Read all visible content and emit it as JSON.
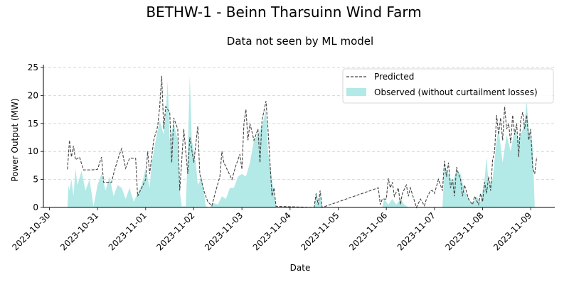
{
  "chart_data": {
    "type": "area",
    "title": "BETHW-1 - Beinn Tharsuinn Wind Farm",
    "subtitle": "Data not seen by ML model",
    "xlabel": "Date",
    "ylabel": "Power Output (MW)",
    "xlim": [
      "2023-10-29 21:00",
      "2023-11-09 12:00"
    ],
    "ylim": [
      0,
      25.5
    ],
    "yticks": [
      0,
      5,
      10,
      15,
      20,
      25
    ],
    "xticks": [
      "2023-10-30",
      "2023-10-31",
      "2023-11-01",
      "2023-11-02",
      "2023-11-03",
      "2023-11-04",
      "2023-11-05",
      "2023-11-06",
      "2023-11-07",
      "2023-11-08",
      "2023-11-09"
    ],
    "grid": "horizontal dashed",
    "legend_position": "top-right",
    "colors": {
      "predicted": "#444444",
      "observed": "#b3e9e6"
    },
    "series": [
      {
        "name": "Predicted",
        "style": "dashed-line",
        "points": [
          [
            "2023-10-30 09:00",
            6.8
          ],
          [
            "2023-10-30 10:00",
            12
          ],
          [
            "2023-10-30 11:00",
            9
          ],
          [
            "2023-10-30 12:00",
            11
          ],
          [
            "2023-10-30 13:00",
            8.5
          ],
          [
            "2023-10-30 15:00",
            9
          ],
          [
            "2023-10-30 17:00",
            6.7
          ],
          [
            "2023-10-30 21:00",
            6.7
          ],
          [
            "2023-10-31 00:00",
            6.8
          ],
          [
            "2023-10-31 02:00",
            9
          ],
          [
            "2023-10-31 03:00",
            4.5
          ],
          [
            "2023-10-31 07:00",
            4.5
          ],
          [
            "2023-10-31 08:00",
            6
          ],
          [
            "2023-10-31 10:00",
            8.5
          ],
          [
            "2023-10-31 12:00",
            10.5
          ],
          [
            "2023-10-31 14:00",
            7
          ],
          [
            "2023-10-31 16:00",
            8.8
          ],
          [
            "2023-10-31 19:00",
            8.8
          ],
          [
            "2023-10-31 20:00",
            2
          ],
          [
            "2023-10-31 22:00",
            3.5
          ],
          [
            "2023-11-01 00:00",
            5
          ],
          [
            "2023-11-01 01:00",
            10
          ],
          [
            "2023-11-01 02:00",
            6
          ],
          [
            "2023-11-01 04:00",
            12
          ],
          [
            "2023-11-01 06:00",
            14.5
          ],
          [
            "2023-11-01 07:00",
            18
          ],
          [
            "2023-11-01 08:00",
            23.5
          ],
          [
            "2023-11-01 09:00",
            14
          ],
          [
            "2023-11-01 10:00",
            18
          ],
          [
            "2023-11-01 12:00",
            17
          ],
          [
            "2023-11-01 13:00",
            8
          ],
          [
            "2023-11-01 14:00",
            16
          ],
          [
            "2023-11-01 16:00",
            14
          ],
          [
            "2023-11-01 17:00",
            3
          ],
          [
            "2023-11-01 19:00",
            14
          ],
          [
            "2023-11-01 21:00",
            6
          ],
          [
            "2023-11-01 22:00",
            12.5
          ],
          [
            "2023-11-02 00:00",
            8
          ],
          [
            "2023-11-02 02:00",
            14.5
          ],
          [
            "2023-11-02 03:00",
            6
          ],
          [
            "2023-11-02 05:00",
            3
          ],
          [
            "2023-11-02 07:00",
            1
          ],
          [
            "2023-11-02 09:00",
            0.3
          ],
          [
            "2023-11-02 11:00",
            3
          ],
          [
            "2023-11-02 13:00",
            5.5
          ],
          [
            "2023-11-02 14:00",
            10
          ],
          [
            "2023-11-02 15:00",
            8
          ],
          [
            "2023-11-02 17:00",
            6.5
          ],
          [
            "2023-11-02 19:00",
            5
          ],
          [
            "2023-11-02 21:00",
            7.5
          ],
          [
            "2023-11-02 23:00",
            9.5
          ],
          [
            "2023-11-03 00:00",
            6.8
          ],
          [
            "2023-11-03 01:00",
            15
          ],
          [
            "2023-11-03 02:00",
            17.5
          ],
          [
            "2023-11-03 03:00",
            12
          ],
          [
            "2023-11-03 04:00",
            15
          ],
          [
            "2023-11-03 06:00",
            12
          ],
          [
            "2023-11-03 08:00",
            14
          ],
          [
            "2023-11-03 09:00",
            8
          ],
          [
            "2023-11-03 10:00",
            15.5
          ],
          [
            "2023-11-03 12:00",
            19
          ],
          [
            "2023-11-03 13:00",
            14
          ],
          [
            "2023-11-03 15:00",
            2
          ],
          [
            "2023-11-03 16:00",
            3.5
          ],
          [
            "2023-11-03 17:00",
            0.2
          ],
          [
            "2023-11-04 12:00",
            0
          ],
          [
            "2023-11-04 13:00",
            2.5
          ],
          [
            "2023-11-04 14:00",
            0.5
          ],
          [
            "2023-11-04 15:00",
            3
          ],
          [
            "2023-11-04 16:00",
            0
          ],
          [
            "2023-11-05 20:00",
            3.5
          ],
          [
            "2023-11-05 21:00",
            0.5
          ],
          [
            "2023-11-05 22:00",
            1.5
          ],
          [
            "2023-11-06 00:00",
            1.5
          ],
          [
            "2023-11-06 01:00",
            5.2
          ],
          [
            "2023-11-06 02:00",
            3.5
          ],
          [
            "2023-11-06 03:00",
            4.5
          ],
          [
            "2023-11-06 04:00",
            2
          ],
          [
            "2023-11-06 06:00",
            3.5
          ],
          [
            "2023-11-06 07:00",
            0.5
          ],
          [
            "2023-11-06 08:00",
            2.5
          ],
          [
            "2023-11-06 10:00",
            4
          ],
          [
            "2023-11-06 11:00",
            2
          ],
          [
            "2023-11-06 12:00",
            3.5
          ],
          [
            "2023-11-06 15:00",
            0
          ],
          [
            "2023-11-06 17:00",
            1.5
          ],
          [
            "2023-11-06 19:00",
            0.3
          ],
          [
            "2023-11-06 20:00",
            1.5
          ],
          [
            "2023-11-06 22:00",
            3
          ],
          [
            "2023-11-06 23:00",
            3
          ],
          [
            "2023-11-07 00:00",
            2.5
          ],
          [
            "2023-11-07 02:00",
            5
          ],
          [
            "2023-11-07 04:00",
            3
          ],
          [
            "2023-11-07 05:00",
            8.3
          ],
          [
            "2023-11-07 06:00",
            5.5
          ],
          [
            "2023-11-07 07:00",
            8
          ],
          [
            "2023-11-07 08:00",
            3.5
          ],
          [
            "2023-11-07 09:00",
            5
          ],
          [
            "2023-11-07 10:00",
            2
          ],
          [
            "2023-11-07 11:00",
            7.2
          ],
          [
            "2023-11-07 12:00",
            6
          ],
          [
            "2023-11-07 13:00",
            5
          ],
          [
            "2023-11-07 14:00",
            2
          ],
          [
            "2023-11-07 15:00",
            4
          ],
          [
            "2023-11-07 17:00",
            1.5
          ],
          [
            "2023-11-07 19:00",
            0.5
          ],
          [
            "2023-11-07 20:00",
            2
          ],
          [
            "2023-11-07 22:00",
            0.5
          ],
          [
            "2023-11-07 23:00",
            2.5
          ],
          [
            "2023-11-08 00:00",
            1
          ],
          [
            "2023-11-08 01:00",
            4.5
          ],
          [
            "2023-11-08 02:00",
            2.5
          ],
          [
            "2023-11-08 03:00",
            5.5
          ],
          [
            "2023-11-08 04:00",
            3
          ],
          [
            "2023-11-08 05:00",
            8.5
          ],
          [
            "2023-11-08 06:00",
            10
          ],
          [
            "2023-11-08 07:00",
            16.5
          ],
          [
            "2023-11-08 08:00",
            13
          ],
          [
            "2023-11-08 09:00",
            16
          ],
          [
            "2023-11-08 10:00",
            12
          ],
          [
            "2023-11-08 11:00",
            18
          ],
          [
            "2023-11-08 12:00",
            14
          ],
          [
            "2023-11-08 13:00",
            15
          ],
          [
            "2023-11-08 14:00",
            11.5
          ],
          [
            "2023-11-08 15:00",
            16.5
          ],
          [
            "2023-11-08 16:00",
            13
          ],
          [
            "2023-11-08 17:00",
            15
          ],
          [
            "2023-11-08 18:00",
            9
          ],
          [
            "2023-11-08 19:00",
            15.5
          ],
          [
            "2023-11-08 20:00",
            17
          ],
          [
            "2023-11-08 21:00",
            14
          ],
          [
            "2023-11-08 22:00",
            16.5
          ],
          [
            "2023-11-08 23:00",
            12
          ],
          [
            "2023-11-09 00:00",
            14
          ],
          [
            "2023-11-09 01:00",
            7
          ],
          [
            "2023-11-09 02:00",
            6
          ],
          [
            "2023-11-09 03:00",
            9
          ]
        ]
      },
      {
        "name": "Observed (without curtailment losses)",
        "style": "filled-area",
        "points": [
          [
            "2023-10-30 09:00",
            0
          ],
          [
            "2023-10-30 09:30",
            4
          ],
          [
            "2023-10-30 10:00",
            3
          ],
          [
            "2023-10-30 11:00",
            5
          ],
          [
            "2023-10-30 12:00",
            2
          ],
          [
            "2023-10-30 13:00",
            7
          ],
          [
            "2023-10-30 14:00",
            4
          ],
          [
            "2023-10-30 16:00",
            6.5
          ],
          [
            "2023-10-30 18:00",
            3
          ],
          [
            "2023-10-30 20:00",
            5
          ],
          [
            "2023-10-30 22:00",
            0.2
          ],
          [
            "2023-10-31 00:00",
            4
          ],
          [
            "2023-10-31 02:00",
            6
          ],
          [
            "2023-10-31 04:00",
            3
          ],
          [
            "2023-10-31 06:00",
            5.5
          ],
          [
            "2023-10-31 08:00",
            2
          ],
          [
            "2023-10-31 10:00",
            4
          ],
          [
            "2023-10-31 12:00",
            3.5
          ],
          [
            "2023-10-31 14:00",
            1.5
          ],
          [
            "2023-10-31 16:00",
            3.5
          ],
          [
            "2023-10-31 18:00",
            1
          ],
          [
            "2023-10-31 20:00",
            2.5
          ],
          [
            "2023-10-31 22:00",
            4
          ],
          [
            "2023-11-01 00:00",
            7
          ],
          [
            "2023-11-01 02:00",
            3.5
          ],
          [
            "2023-11-01 03:00",
            8
          ],
          [
            "2023-11-01 05:00",
            12
          ],
          [
            "2023-11-01 07:00",
            15.5
          ],
          [
            "2023-11-01 09:00",
            13
          ],
          [
            "2023-11-01 10:00",
            17
          ],
          [
            "2023-11-01 11:00",
            22.5
          ],
          [
            "2023-11-01 12:00",
            12
          ],
          [
            "2023-11-01 14:00",
            15
          ],
          [
            "2023-11-01 16:00",
            12
          ],
          [
            "2023-11-01 17:00",
            3
          ],
          [
            "2023-11-01 18:00",
            0.2
          ],
          [
            "2023-11-01 20:00",
            0.2
          ],
          [
            "2023-11-01 21:00",
            10
          ],
          [
            "2023-11-01 22:00",
            23.5
          ],
          [
            "2023-11-01 23:00",
            12
          ],
          [
            "2023-11-02 01:00",
            8
          ],
          [
            "2023-11-02 02:00",
            4
          ],
          [
            "2023-11-02 04:00",
            5.5
          ],
          [
            "2023-11-02 06:00",
            0.2
          ],
          [
            "2023-11-02 08:00",
            0
          ],
          [
            "2023-11-02 10:00",
            0.8
          ],
          [
            "2023-11-02 12:00",
            0.5
          ],
          [
            "2023-11-02 14:00",
            2
          ],
          [
            "2023-11-02 16:00",
            1.5
          ],
          [
            "2023-11-02 18:00",
            3.5
          ],
          [
            "2023-11-02 20:00",
            3.5
          ],
          [
            "2023-11-02 22:00",
            5.5
          ],
          [
            "2023-11-03 00:00",
            6
          ],
          [
            "2023-11-03 02:00",
            5.5
          ],
          [
            "2023-11-03 04:00",
            8
          ],
          [
            "2023-11-03 06:00",
            12
          ],
          [
            "2023-11-03 08:00",
            13
          ],
          [
            "2023-11-03 10:00",
            14.5
          ],
          [
            "2023-11-03 12:00",
            17.5
          ],
          [
            "2023-11-03 13:00",
            10
          ],
          [
            "2023-11-03 15:00",
            5
          ],
          [
            "2023-11-03 17:00",
            0
          ],
          [
            "2023-11-04 12:00",
            0
          ],
          [
            "2023-11-04 13:00",
            2.8
          ],
          [
            "2023-11-04 14:00",
            1
          ],
          [
            "2023-11-04 15:00",
            2.5
          ],
          [
            "2023-11-04 16:00",
            0
          ],
          [
            "2023-11-05 22:00",
            0
          ],
          [
            "2023-11-05 23:00",
            1.5
          ],
          [
            "2023-11-06 01:00",
            0.5
          ],
          [
            "2023-11-06 03:00",
            1.5
          ],
          [
            "2023-11-06 05:00",
            0.5
          ],
          [
            "2023-11-06 07:00",
            1.5
          ],
          [
            "2023-11-06 09:00",
            0.5
          ],
          [
            "2023-11-06 11:00",
            0
          ],
          [
            "2023-11-07 04:00",
            0
          ],
          [
            "2023-11-07 05:00",
            7.5
          ],
          [
            "2023-11-07 07:00",
            6
          ],
          [
            "2023-11-07 09:00",
            4.5
          ],
          [
            "2023-11-07 11:00",
            6.5
          ],
          [
            "2023-11-07 13:00",
            6
          ],
          [
            "2023-11-07 15:00",
            3
          ],
          [
            "2023-11-07 17:00",
            1.5
          ],
          [
            "2023-11-07 19:00",
            0.5
          ],
          [
            "2023-11-07 21:00",
            2
          ],
          [
            "2023-11-07 23:00",
            1
          ],
          [
            "2023-11-08 01:00",
            5
          ],
          [
            "2023-11-08 02:00",
            9
          ],
          [
            "2023-11-08 03:00",
            4
          ],
          [
            "2023-11-08 05:00",
            5
          ],
          [
            "2023-11-08 07:00",
            12
          ],
          [
            "2023-11-08 08:00",
            14
          ],
          [
            "2023-11-08 10:00",
            8
          ],
          [
            "2023-11-08 12:00",
            13
          ],
          [
            "2023-11-08 14:00",
            10
          ],
          [
            "2023-11-08 16:00",
            14
          ],
          [
            "2023-11-08 18:00",
            12
          ],
          [
            "2023-11-08 20:00",
            14
          ],
          [
            "2023-11-08 21:00",
            15.5
          ],
          [
            "2023-11-08 22:00",
            19
          ],
          [
            "2023-11-08 23:00",
            14
          ],
          [
            "2023-11-09 00:00",
            12.5
          ],
          [
            "2023-11-09 01:00",
            11
          ],
          [
            "2023-11-09 02:00",
            0
          ]
        ]
      }
    ]
  }
}
